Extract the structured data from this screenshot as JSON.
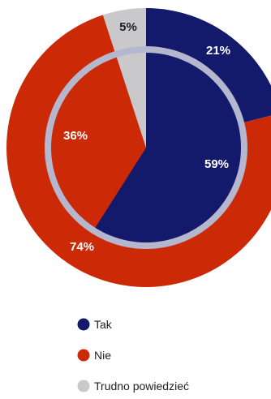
{
  "chart_data": [
    {
      "type": "pie",
      "ring": "outer",
      "categories": [
        "Tak",
        "Nie",
        "Trudno powiedzieć"
      ],
      "values": [
        21,
        74,
        5
      ],
      "labels": [
        "21%",
        "74%",
        "5%"
      ]
    },
    {
      "type": "pie",
      "ring": "inner",
      "categories": [
        "Tak",
        "Nie",
        "Trudno powiedzieć"
      ],
      "values": [
        59,
        36,
        5
      ],
      "labels": [
        "59%",
        "36%",
        "5%"
      ]
    }
  ],
  "legend": {
    "position": "bottom-left",
    "items": [
      {
        "label": "Tak",
        "color": "#141a6b"
      },
      {
        "label": "Nie",
        "color": "#cc2a07"
      },
      {
        "label": "Trudno powiedzieć",
        "color": "#c9c9cc"
      }
    ]
  },
  "colors": {
    "tak": "#141a6b",
    "nie": "#cc2a07",
    "trudno": "#c9c9cc",
    "separator_ring": "#b4b7ce"
  }
}
